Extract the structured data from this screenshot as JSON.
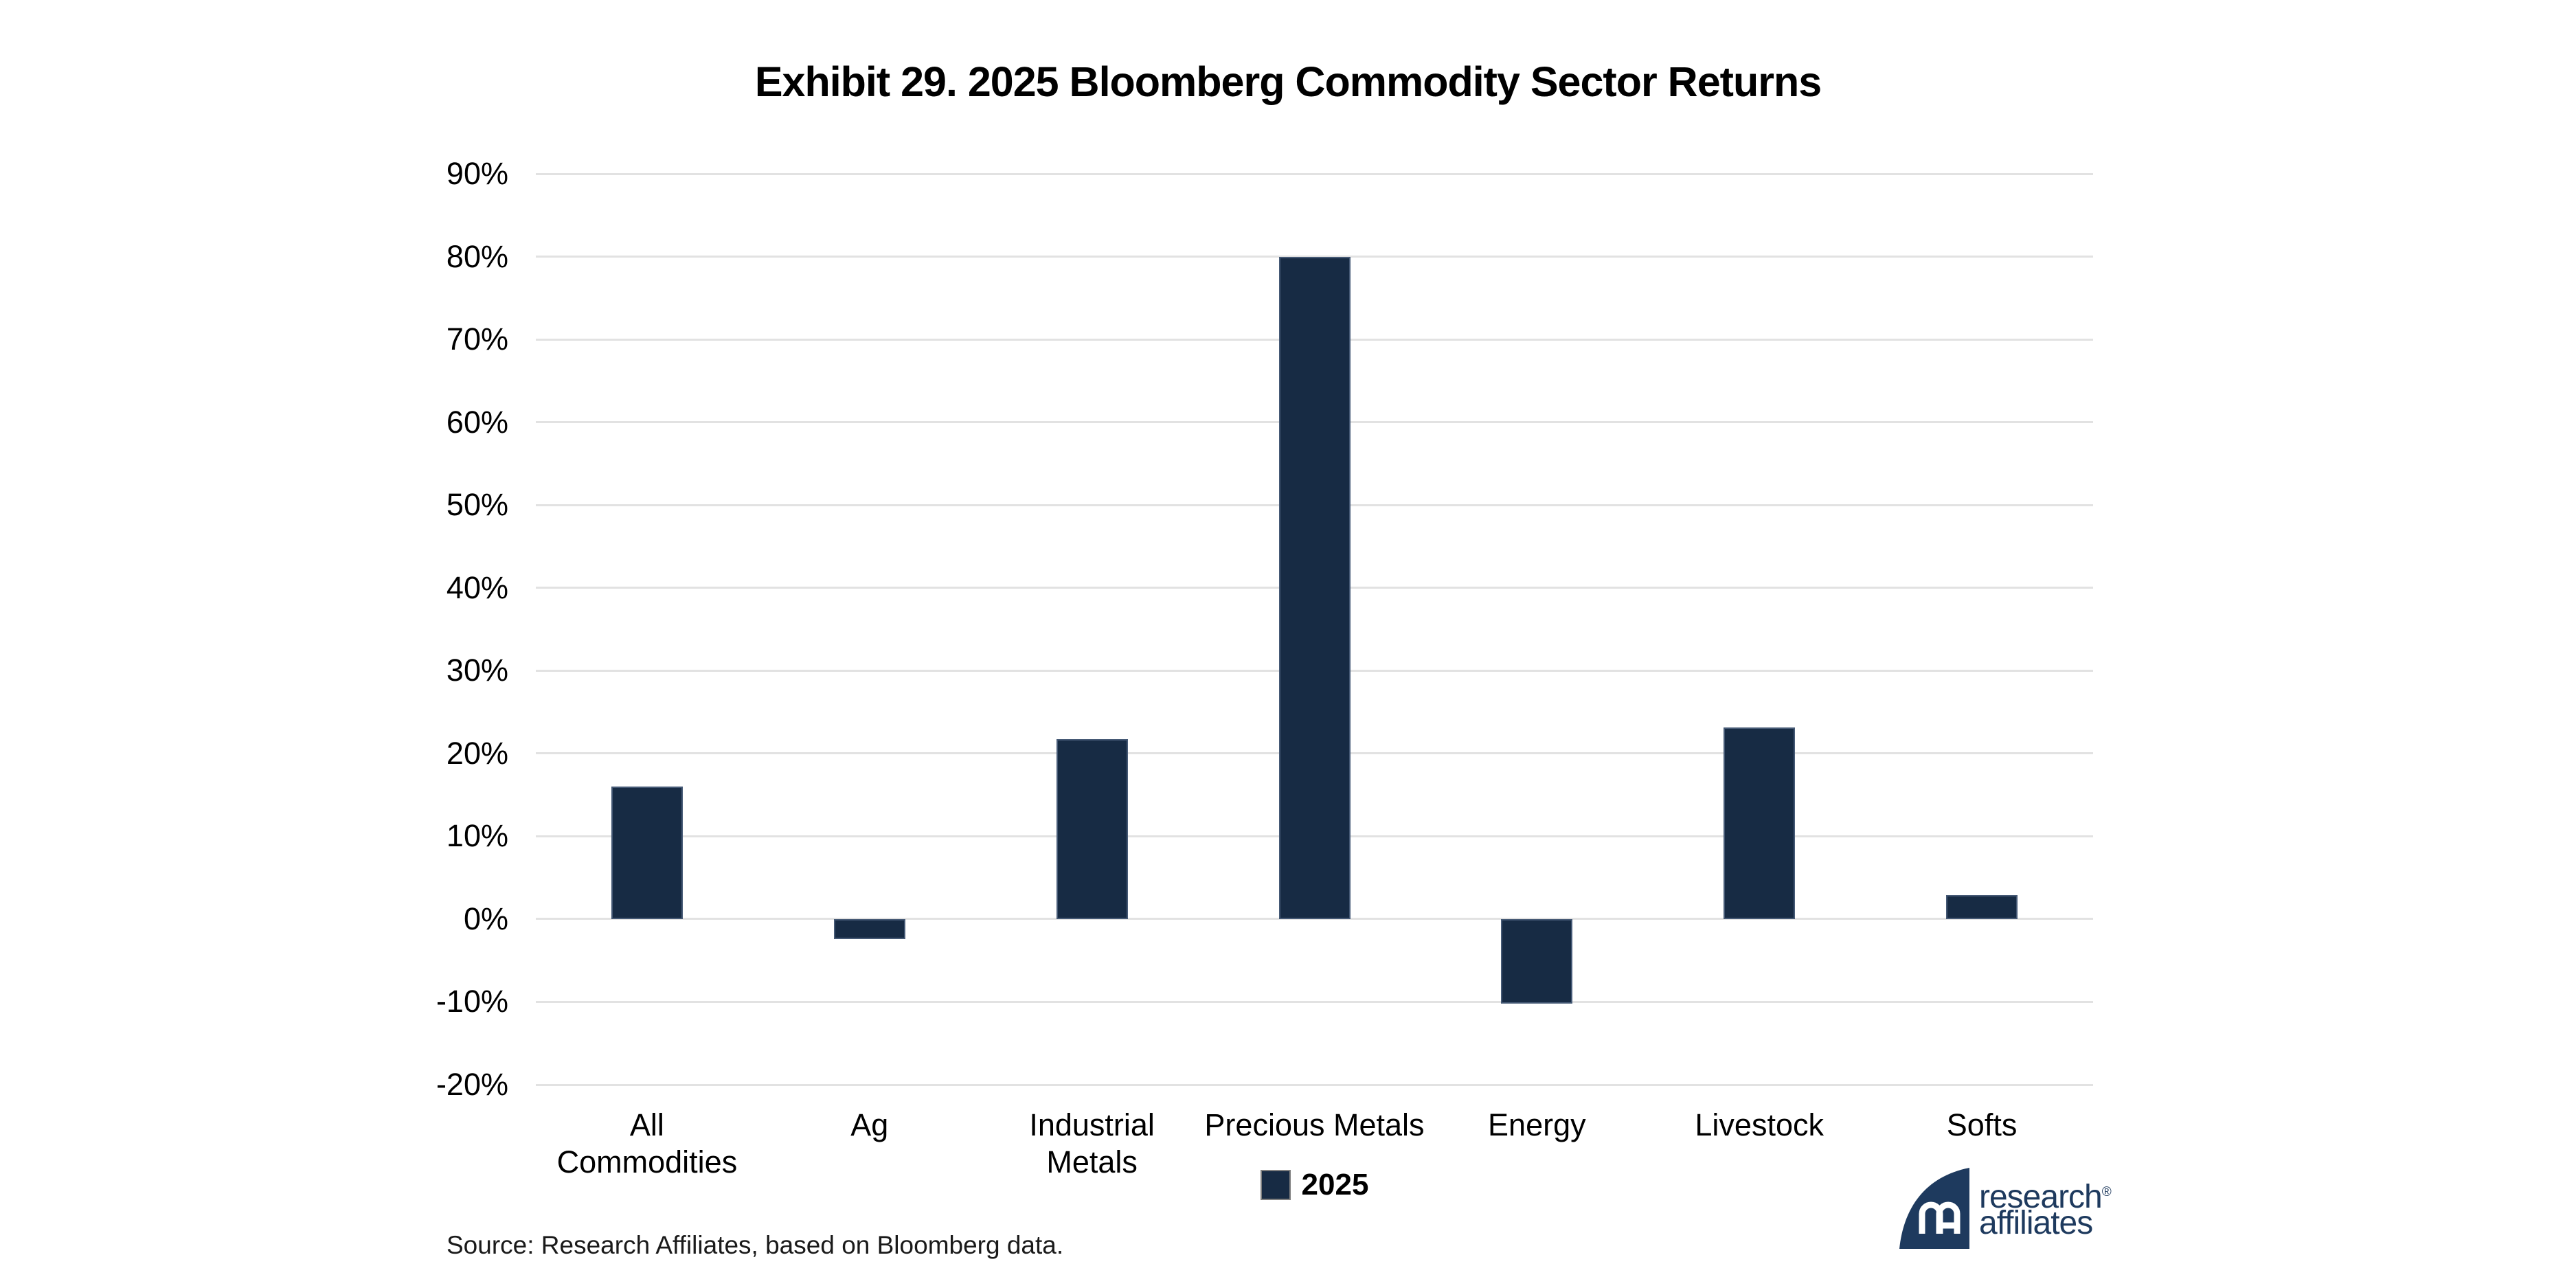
{
  "title": "Exhibit 29. 2025 Bloomberg Commodity Sector Returns",
  "chart_data": {
    "type": "bar",
    "categories": [
      "All Commodities",
      "Ag",
      "Industrial Metals",
      "Precious Metals",
      "Energy",
      "Livestock",
      "Softs"
    ],
    "series": [
      {
        "name": "2025",
        "values": [
          16.0,
          -2.4,
          21.7,
          80.0,
          -10.2,
          23.1,
          2.9
        ]
      }
    ],
    "title": "Exhibit 29. 2025 Bloomberg Commodity Sector Returns",
    "xlabel": "",
    "ylabel": "",
    "ylim": [
      -20,
      90
    ],
    "ytick_values": [
      90,
      80,
      70,
      60,
      50,
      40,
      30,
      20,
      10,
      0,
      -10,
      -20
    ],
    "ytick_labels": [
      "90%",
      "80%",
      "70%",
      "60%",
      "50%",
      "40%",
      "30%",
      "20%",
      "10%",
      "0%",
      "-10%",
      "-20%"
    ],
    "grid": "horizontal",
    "legend_position": "bottom",
    "bar_color": "#172B44",
    "gridline_color": "#e2e2e2"
  },
  "legend": {
    "items": [
      {
        "label": "2025",
        "color": "#172B44"
      }
    ]
  },
  "source": {
    "text": "Source: Research Affiliates, based on Bloomberg data."
  },
  "logo": {
    "line1": "research",
    "line2": "affiliates",
    "registered": "®",
    "color": "#1E3A5E"
  }
}
